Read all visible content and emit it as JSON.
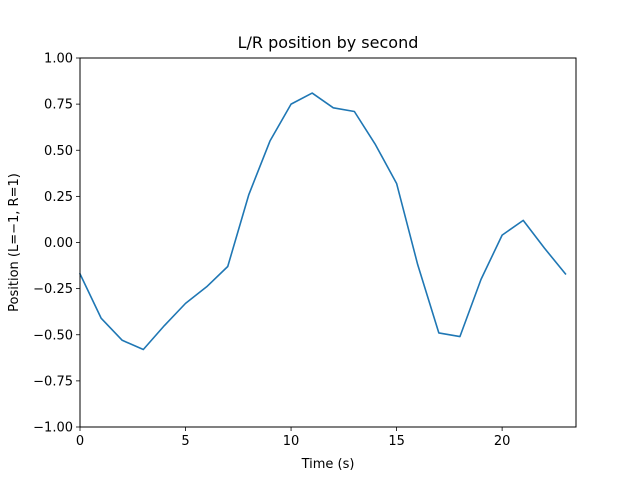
{
  "chart_data": {
    "type": "line",
    "title": "L/R position by second",
    "xlabel": "Time (s)",
    "ylabel": "Position (L=−1, R=1)",
    "xlim": [
      0,
      23.5
    ],
    "ylim": [
      -1.0,
      1.0
    ],
    "xticks": [
      0,
      5,
      10,
      15,
      20
    ],
    "xtick_labels": [
      "0",
      "5",
      "10",
      "15",
      "20"
    ],
    "yticks": [
      -1.0,
      -0.75,
      -0.5,
      -0.25,
      0.0,
      0.25,
      0.5,
      0.75,
      1.0
    ],
    "ytick_labels": [
      "−1.00",
      "−0.75",
      "−0.50",
      "−0.25",
      "0.00",
      "0.25",
      "0.50",
      "0.75",
      "1.00"
    ],
    "grid": false,
    "legend": "none",
    "series": [
      {
        "color": "#1f77b4",
        "x": [
          0,
          1,
          2,
          3,
          4,
          5,
          6,
          7,
          8,
          9,
          10,
          11,
          12,
          13,
          14,
          15,
          16,
          17,
          18,
          19,
          20,
          21,
          22,
          23
        ],
        "y": [
          -0.17,
          -0.41,
          -0.53,
          -0.58,
          -0.45,
          -0.33,
          -0.24,
          -0.13,
          0.26,
          0.55,
          0.75,
          0.81,
          0.73,
          0.71,
          0.53,
          0.32,
          -0.12,
          -0.49,
          -0.51,
          -0.2,
          0.04,
          0.12,
          -0.03,
          -0.17
        ]
      }
    ]
  }
}
